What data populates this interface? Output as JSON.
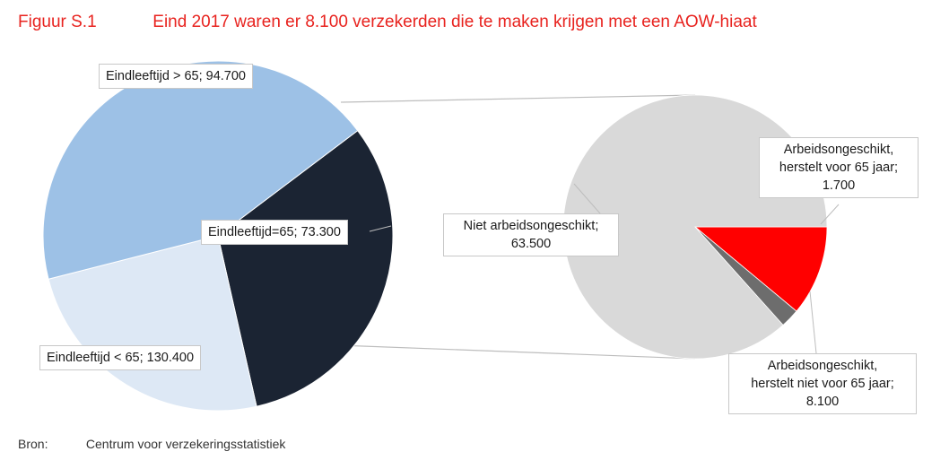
{
  "header": {
    "figure_label": "Figuur S.1",
    "title": "Eind 2017 waren er 8.100 verzekerden die te maken krijgen met een AOW-hiaat"
  },
  "source": {
    "label": "Bron:",
    "text": "Centrum voor verzekeringsstatistiek"
  },
  "colors": {
    "title": "#e8231f",
    "dark": "#1b2433",
    "light_blue": "#dde8f5",
    "mid_blue": "#9dc1e6",
    "grey": "#d9d9d9",
    "dark_grey": "#6d6d6d",
    "red": "#ff0000"
  },
  "chart_data": [
    {
      "type": "pie",
      "slices": [
        {
          "label": "Eindleeftijd > 65; 94.700",
          "value": 94700,
          "color": "#1b2433"
        },
        {
          "label": "Eindleeftijd=65; 73.300",
          "value": 73300,
          "color": "#dde8f5"
        },
        {
          "label": "Eindleeftijd < 65; 130.400",
          "value": 130400,
          "color": "#9dc1e6"
        }
      ]
    },
    {
      "type": "pie",
      "slices": [
        {
          "label_lines": [
            "Niet arbeidsongeschikt;",
            "63.500"
          ],
          "value": 63500,
          "color": "#d9d9d9"
        },
        {
          "label_lines": [
            "Arbeidsongeschikt,",
            "herstelt voor 65 jaar;",
            "1.700"
          ],
          "value": 1700,
          "color": "#6d6d6d"
        },
        {
          "label_lines": [
            "Arbeidsongeschikt,",
            "herstelt niet voor 65 jaar;",
            "8.100"
          ],
          "value": 8100,
          "color": "#ff0000"
        }
      ]
    }
  ]
}
